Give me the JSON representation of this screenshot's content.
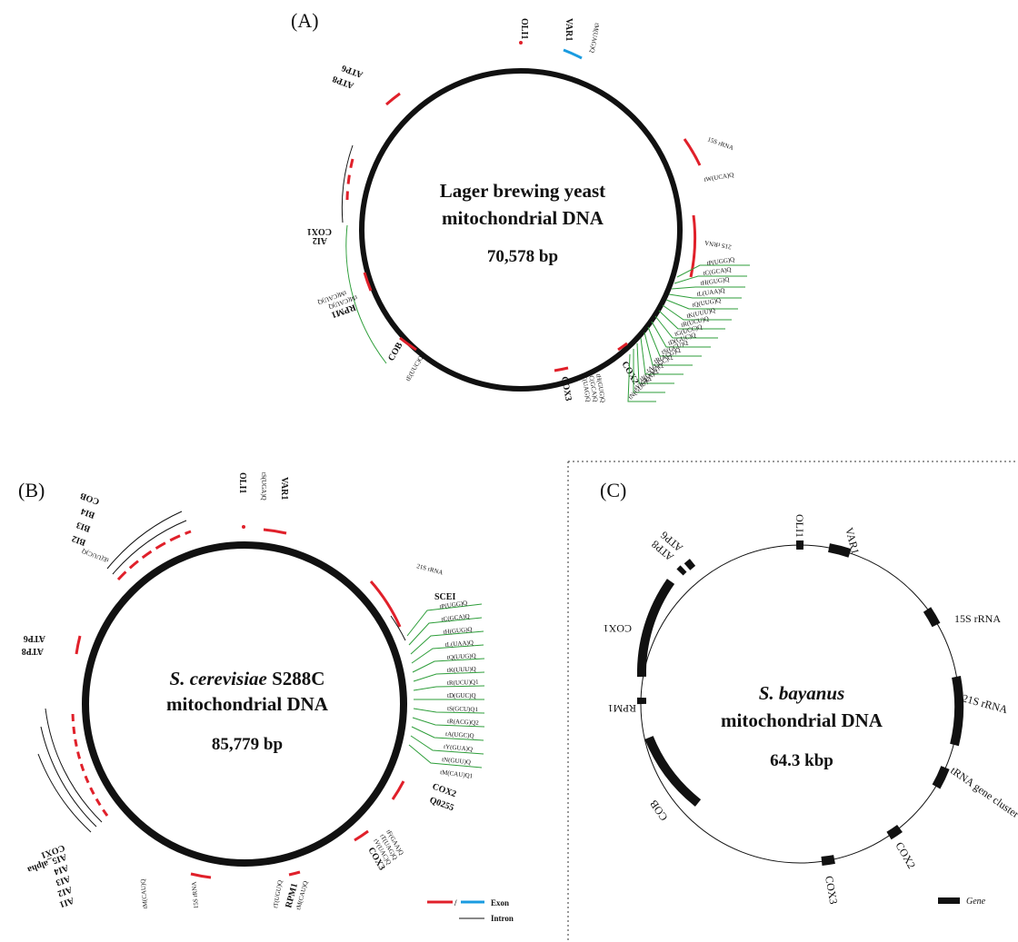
{
  "panels": {
    "a": {
      "label": "(A)",
      "title_line1": "Lager brewing yeast",
      "title_line2": "mitochondrial DNA",
      "size": "70,578 bp",
      "genes": [
        "OLI1",
        "VAR1",
        "tM(UAG)Q",
        "15S rRNA",
        "tW(UCA)Q",
        "21S rRNA",
        "ATP6",
        "ATP8",
        "AI2",
        "COX1",
        "RPM1",
        "tM(CAU)Q",
        "tM(CAU)Q",
        "COB",
        "tE(UUC)Q",
        "COX3",
        "tT(UAG)Q",
        "tC(GCA)Q",
        "tH(GUG)Q",
        "COX2"
      ],
      "trna_cluster": [
        "tP(UGG)Q",
        "tC(GCA)Q",
        "tH(GUG)Q",
        "tL(UAA)Q",
        "tQ(UUG)Q",
        "tK(UUU)Q",
        "tR(UCU)Q",
        "tG(UCC)Q",
        "tD(GUC)Q",
        "tS(GCU)Q",
        "tR(ACG)Q",
        "tA(UGC)Q",
        "tI(GAU)Q",
        "tY(GUA)Q",
        "tN(GUU)Q",
        "tM(CAU)Q"
      ]
    },
    "b": {
      "label": "(B)",
      "title_line1_italic": "S. cerevisiae",
      "title_line1_rest": " S288C",
      "title_line2": "mitochondrial DNA",
      "size": "85,779 bp",
      "genes": [
        "OLI1",
        "tS(UGA)Q",
        "VAR1",
        "21S rRNA",
        "SCEI",
        "COB",
        "BI4",
        "BI3",
        "BI2",
        "tE(UUC)Q",
        "ATP6",
        "ATP8",
        "COX1",
        "AI5_alpha",
        "AI4",
        "AI3",
        "AI2",
        "AI1",
        "tM(CAU)Q",
        "15S rRNA",
        "tT(UGU)Q",
        "RPM1",
        "tM(CAU)Q",
        "COX3",
        "tF(GAA)Q",
        "tT(UAG)Q",
        "tV(UAC)Q",
        "COX2",
        "Q0255"
      ],
      "trna_cluster": [
        "tP(UGG)Q",
        "tC(GCA)Q",
        "tH(GUG)Q",
        "tL(UAA)Q",
        "tQ(UUG)Q",
        "tK(UUU)Q",
        "tR(UCU)Q1",
        "tG(UCC)Q",
        "tD(GUC)Q",
        "tS(GCU)Q1",
        "tR(ACG)Q2",
        "tA(UGC)Q",
        "tI(GAU)Q",
        "tY(GUA)Q",
        "tN(GUU)Q",
        "tM(CAU)Q1"
      ],
      "legend": {
        "exon": "Exon",
        "intron": "Intron"
      }
    },
    "c": {
      "label": "(C)",
      "title_line1_italic": "S. bayanus",
      "title_line2": "mitochondrial DNA",
      "size": "64.3 kbp",
      "genes": [
        "OLI1",
        "VAR1",
        "15S rRNA",
        "21S rRNA",
        "tRNA gene cluster",
        "COX2",
        "COX3",
        "COB",
        "RPM1",
        "COX1",
        "ATP8",
        "ATP6"
      ],
      "legend": {
        "gene": "Gene"
      }
    }
  },
  "colors": {
    "exon": "#e0202a",
    "var1_blue": "#1a9be0",
    "trna_green": "#2e9e3a",
    "circle": "#111111"
  }
}
